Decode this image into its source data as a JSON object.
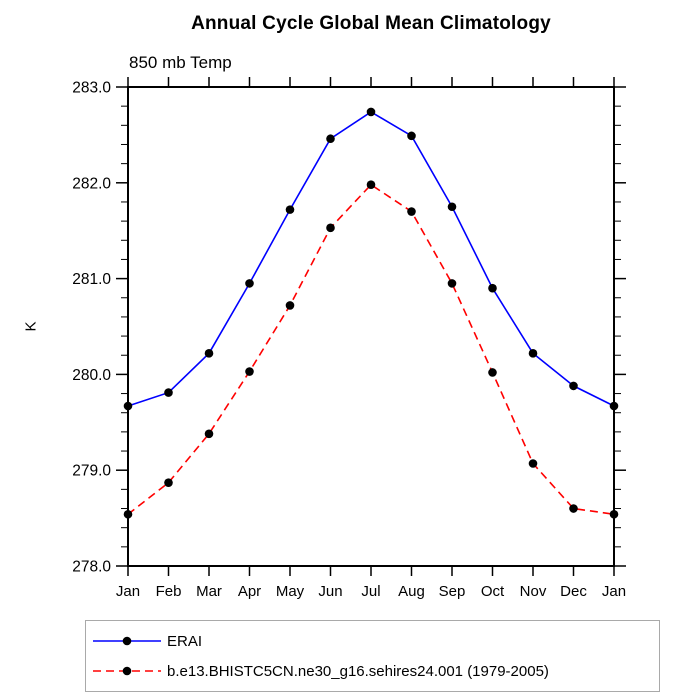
{
  "chart_data": {
    "type": "line",
    "title": "Annual Cycle Global Mean Climatology",
    "subtitle": "850 mb Temp",
    "ylabel": "K",
    "xlabel": "",
    "categories": [
      "Jan",
      "Feb",
      "Mar",
      "Apr",
      "May",
      "Jun",
      "Jul",
      "Aug",
      "Sep",
      "Oct",
      "Nov",
      "Dec",
      "Jan"
    ],
    "series": [
      {
        "name": "ERAI",
        "color": "#0000ff",
        "line_style": "solid",
        "marker": "filled-circle",
        "marker_color": "#000000",
        "values": [
          279.67,
          279.81,
          280.22,
          280.95,
          281.72,
          282.46,
          282.74,
          282.49,
          281.75,
          280.9,
          280.22,
          279.88,
          279.67
        ]
      },
      {
        "name": "b.e13.BHISTC5CN.ne30_g16.sehires24.001 (1979-2005)",
        "color": "#ff0000",
        "line_style": "dashed",
        "marker": "filled-circle",
        "marker_color": "#000000",
        "values": [
          278.54,
          278.87,
          279.38,
          280.03,
          280.72,
          281.53,
          281.98,
          281.7,
          280.95,
          280.02,
          279.07,
          278.6,
          278.54
        ]
      }
    ],
    "ylim": [
      278.0,
      283.0
    ],
    "ytick_step": 1.0,
    "yminor_step": 0.2,
    "ytick_labels": [
      "278.0",
      "279.0",
      "280.0",
      "281.0",
      "282.0",
      "283.0"
    ],
    "grid": false,
    "legend_position": "bottom-left",
    "axis_color": "#000000"
  }
}
